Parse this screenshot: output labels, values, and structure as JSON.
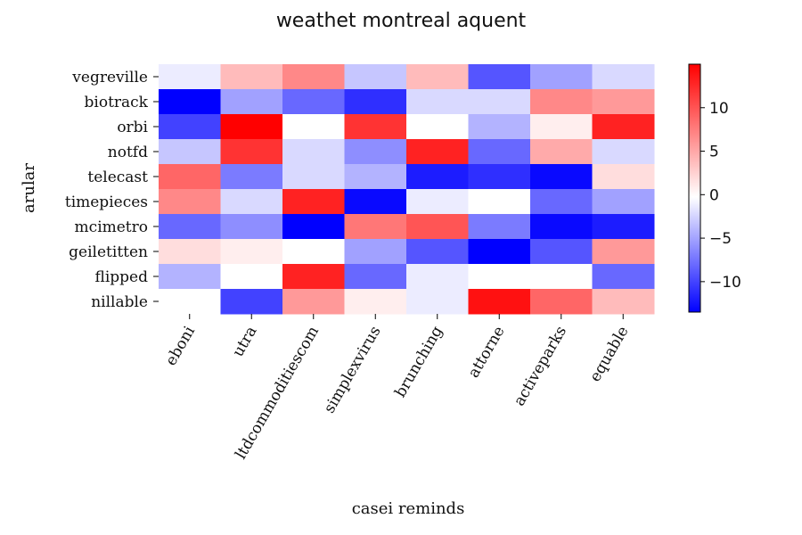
{
  "chart_data": {
    "type": "heatmap",
    "title": "weathet montreal aquent",
    "xlabel": "casei reminds",
    "ylabel": "arular",
    "x_categories": [
      "eboni",
      "utra",
      "ltdcommoditiescom",
      "simplexvirus",
      "brunching",
      "attorne",
      "activeparks",
      "equable"
    ],
    "y_categories": [
      "vegreville",
      "biotrack",
      "orbi",
      "notfd",
      "telecast",
      "timepieces",
      "mcimetro",
      "geiletitten",
      "flipped",
      "nillable"
    ],
    "values": [
      [
        -1,
        4,
        7,
        -3,
        4,
        -9,
        -5,
        -2
      ],
      [
        -14,
        -5,
        -8,
        -11,
        -2,
        -2,
        7,
        6
      ],
      [
        -10,
        15,
        0,
        12,
        0,
        -4,
        1,
        13
      ],
      [
        -3,
        12,
        -2,
        -6,
        13,
        -8,
        5,
        -2
      ],
      [
        9,
        -7,
        -2,
        -4,
        -12,
        -11,
        -13,
        2
      ],
      [
        7,
        -2,
        13,
        -13,
        -1,
        0,
        -8,
        -5
      ],
      [
        -8,
        -6,
        -14,
        8,
        10,
        -7,
        -13,
        -12
      ],
      [
        2,
        1,
        0,
        -5,
        -9,
        -15,
        -9,
        6
      ],
      [
        -4,
        0,
        13,
        -8,
        -1,
        0,
        0,
        -8
      ],
      [
        0,
        -10,
        6,
        1,
        -1,
        14,
        9,
        4
      ]
    ],
    "colormap": {
      "low": "#0000ff",
      "mid": "#ffffff",
      "high": "#ff0000"
    },
    "color_range": [
      -13.5,
      15
    ],
    "colorbar_ticks": [
      10,
      5,
      0,
      -5,
      -10
    ],
    "colorbar_tick_labels": [
      "10",
      "5",
      "0",
      "−5",
      "−10"
    ],
    "grid": false,
    "legend": "colorbar-right"
  }
}
